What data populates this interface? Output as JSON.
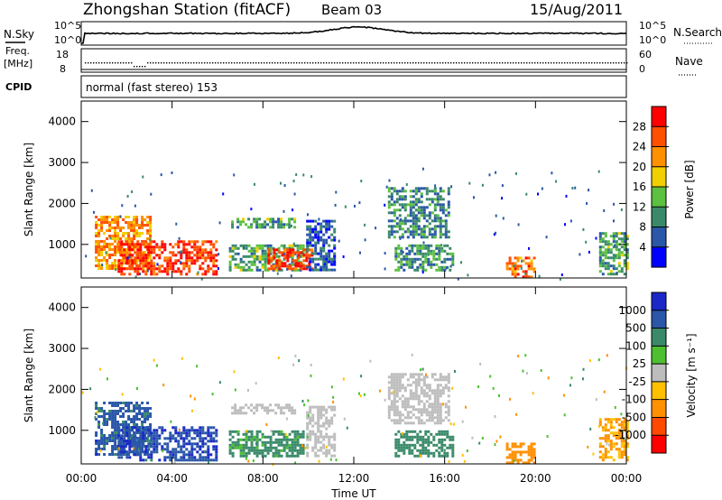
{
  "header": {
    "station": "Zhongshan Station (fitACF)",
    "beam": "Beam 03",
    "date": "15/Aug/2011"
  },
  "nsky_panel": {
    "left_label": "N.Sky",
    "right_label": "N.Search",
    "left_ticks": [
      "10^5",
      "10^0"
    ],
    "right_ticks": [
      "10^5",
      "10^0"
    ]
  },
  "freq_panel": {
    "left_label_1": "Freq.",
    "left_label_2": "[MHz]",
    "right_label": "Nave",
    "left_ticks": [
      "18",
      "8"
    ],
    "right_ticks": [
      "60",
      "0"
    ]
  },
  "cpid_panel": {
    "label": "CPID",
    "text": "normal (fast stereo) 153"
  },
  "x_axis": {
    "label": "Time UT",
    "ticks": [
      "00:00",
      "04:00",
      "08:00",
      "12:00",
      "16:00",
      "20:00",
      "00:00"
    ]
  },
  "power_panel": {
    "ylabel": "Slant Range [km]",
    "yticks": [
      "1000",
      "2000",
      "3000",
      "4000"
    ],
    "colorbar_label": "Power [dB]",
    "colorbar_ticks": [
      "4",
      "8",
      "12",
      "16",
      "20",
      "24",
      "28"
    ]
  },
  "velocity_panel": {
    "ylabel": "Slant Range [km]",
    "yticks": [
      "1000",
      "2000",
      "3000",
      "4000"
    ],
    "colorbar_label": "Velocity [m s⁻¹]",
    "colorbar_ticks": [
      "-1000",
      "-500",
      "-100",
      "-25",
      "25",
      "100",
      "500",
      "1000"
    ]
  },
  "colors": {
    "power_scale": [
      "#0000ff",
      "#2a57a8",
      "#3a8a6a",
      "#5cc040",
      "#f0d000",
      "#ff9000",
      "#ff5000",
      "#ff0000"
    ],
    "velocity_scale": [
      "#ff0000",
      "#ff4a00",
      "#ff9000",
      "#ffc000",
      "#bdbdbd",
      "#4cc030",
      "#3a8a6a",
      "#2a57a8",
      "#1a28c8"
    ]
  },
  "chart_data": [
    {
      "type": "heatmap",
      "title": "Power",
      "xlabel": "Time UT",
      "ylabel": "Slant Range [km]",
      "xlim": [
        0,
        24
      ],
      "ylim": [
        180,
        4500
      ],
      "colorbar": {
        "label": "Power [dB]",
        "range": [
          0,
          32
        ],
        "ticks": [
          4,
          8,
          12,
          16,
          20,
          24,
          28
        ]
      },
      "regions": [
        {
          "t": [
            0.6,
            3.0
          ],
          "r": [
            400,
            1700
          ],
          "value": 22
        },
        {
          "t": [
            1.6,
            6.0
          ],
          "r": [
            300,
            1100
          ],
          "value": 28
        },
        {
          "t": [
            6.5,
            9.8
          ],
          "r": [
            400,
            1000
          ],
          "value": 12
        },
        {
          "t": [
            8.2,
            10.2
          ],
          "r": [
            400,
            900
          ],
          "value": 28
        },
        {
          "t": [
            6.6,
            9.4
          ],
          "r": [
            1400,
            1650
          ],
          "value": 12
        },
        {
          "t": [
            9.9,
            11.2
          ],
          "r": [
            400,
            1600
          ],
          "value": 6
        },
        {
          "t": [
            13.5,
            16.2
          ],
          "r": [
            1200,
            2400
          ],
          "value": 9
        },
        {
          "t": [
            13.8,
            16.4
          ],
          "r": [
            400,
            1000
          ],
          "value": 10
        },
        {
          "t": [
            18.7,
            19.9
          ],
          "r": [
            200,
            700
          ],
          "value": 24
        },
        {
          "t": [
            22.8,
            24.0
          ],
          "r": [
            300,
            1300
          ],
          "value": 12
        }
      ]
    },
    {
      "type": "heatmap",
      "title": "Velocity",
      "xlabel": "Time UT",
      "ylabel": "Slant Range [km]",
      "xlim": [
        0,
        24
      ],
      "ylim": [
        180,
        4500
      ],
      "colorbar": {
        "label": "Velocity [m s⁻¹]",
        "ticks": [
          -1000,
          -500,
          -100,
          -25,
          25,
          100,
          500,
          1000
        ]
      },
      "regions": [
        {
          "t": [
            0.6,
            3.0
          ],
          "r": [
            400,
            1700
          ],
          "value": 700
        },
        {
          "t": [
            1.6,
            6.0
          ],
          "r": [
            300,
            1100
          ],
          "value": 900
        },
        {
          "t": [
            6.5,
            9.8
          ],
          "r": [
            400,
            1000
          ],
          "value": 150
        },
        {
          "t": [
            6.6,
            9.4
          ],
          "r": [
            1400,
            1650
          ],
          "value": 0
        },
        {
          "t": [
            9.9,
            11.2
          ],
          "r": [
            400,
            1600
          ],
          "value": 0
        },
        {
          "t": [
            13.5,
            16.2
          ],
          "r": [
            1200,
            2400
          ],
          "value": 0
        },
        {
          "t": [
            13.8,
            16.4
          ],
          "r": [
            400,
            1000
          ],
          "value": 200
        },
        {
          "t": [
            18.7,
            19.9
          ],
          "r": [
            200,
            700
          ],
          "value": -300
        },
        {
          "t": [
            22.8,
            24.0
          ],
          "r": [
            300,
            1300
          ],
          "value": -100
        }
      ]
    }
  ]
}
